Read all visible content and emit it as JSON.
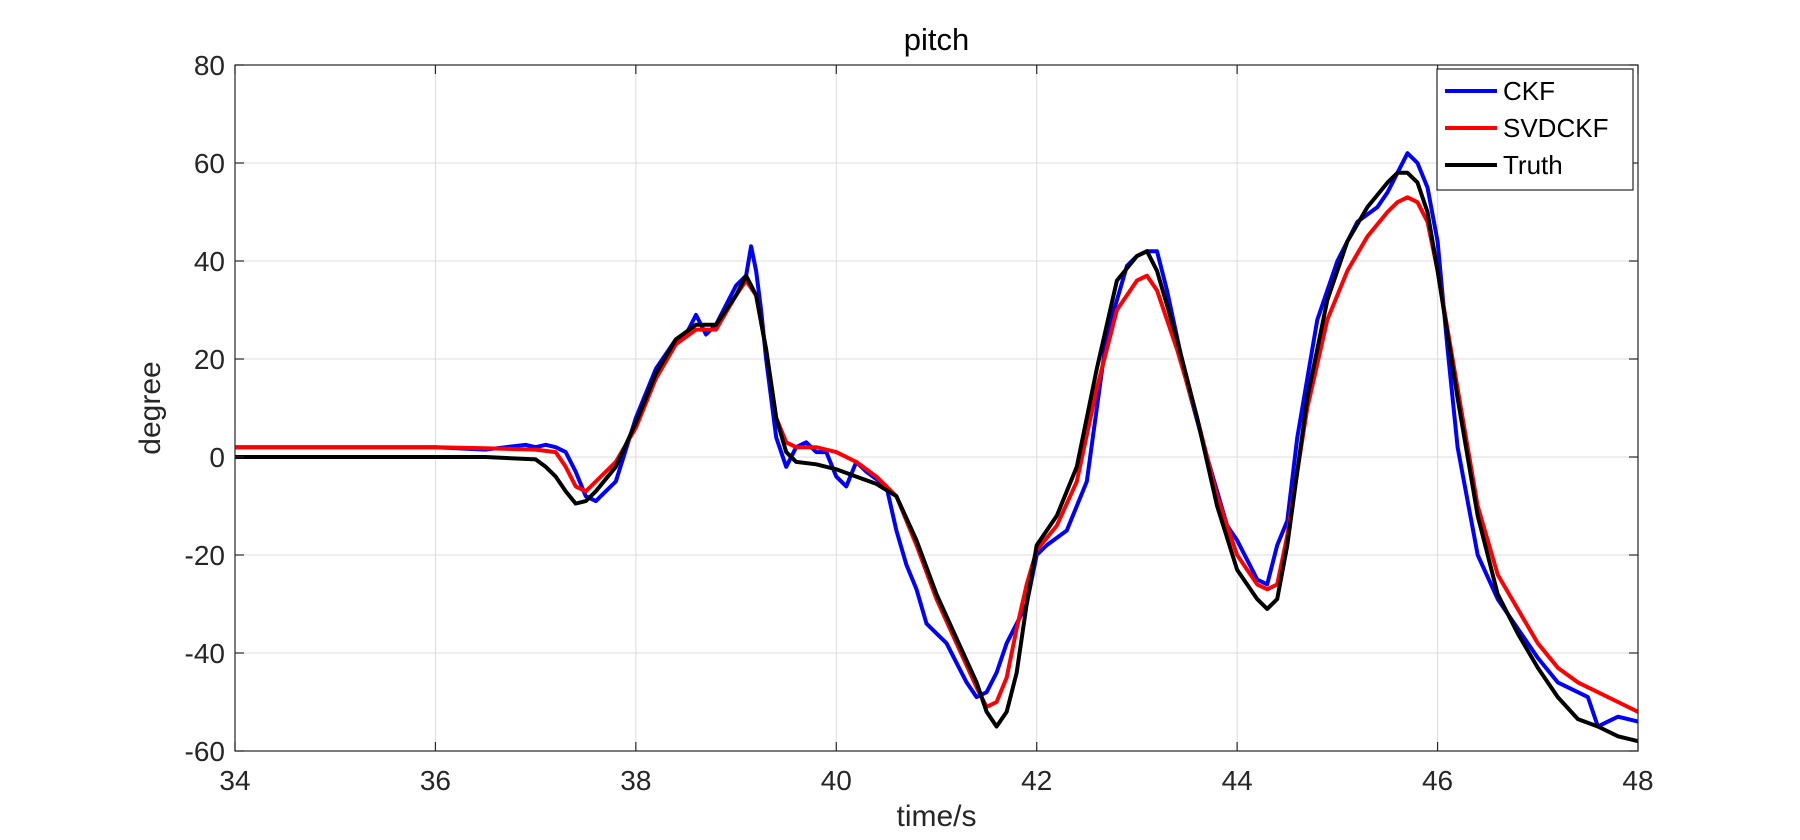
{
  "chart_data": {
    "type": "line",
    "title": "pitch",
    "xlabel": "time/s",
    "ylabel": "degree",
    "xlim": [
      34,
      48
    ],
    "ylim": [
      -60,
      80
    ],
    "xticks": [
      34,
      36,
      38,
      40,
      42,
      44,
      46,
      48
    ],
    "yticks": [
      -60,
      -40,
      -20,
      0,
      20,
      40,
      60,
      80
    ],
    "grid": true,
    "legend": "top-right",
    "series": [
      {
        "name": "CKF",
        "color": "#0000ff",
        "x": [
          34,
          35,
          36,
          36.5,
          36.7,
          36.9,
          37.0,
          37.1,
          37.2,
          37.3,
          37.4,
          37.5,
          37.6,
          37.8,
          38.0,
          38.2,
          38.4,
          38.5,
          38.6,
          38.7,
          38.8,
          38.9,
          39.0,
          39.1,
          39.15,
          39.2,
          39.25,
          39.3,
          39.4,
          39.5,
          39.6,
          39.7,
          39.8,
          39.9,
          40.0,
          40.1,
          40.2,
          40.3,
          40.5,
          40.6,
          40.7,
          40.8,
          40.9,
          41.0,
          41.1,
          41.2,
          41.3,
          41.4,
          41.5,
          41.6,
          41.7,
          41.8,
          41.9,
          42.0,
          42.1,
          42.3,
          42.5,
          42.7,
          42.9,
          43.0,
          43.1,
          43.2,
          43.3,
          43.5,
          43.7,
          43.9,
          44.0,
          44.1,
          44.2,
          44.3,
          44.4,
          44.5,
          44.6,
          44.8,
          45.0,
          45.2,
          45.4,
          45.5,
          45.6,
          45.7,
          45.8,
          45.9,
          46.0,
          46.1,
          46.2,
          46.4,
          46.6,
          46.8,
          47.0,
          47.2,
          47.4,
          47.5,
          47.6,
          47.7,
          47.8,
          48.0
        ],
        "y": [
          2,
          2,
          2,
          1.5,
          2,
          2.5,
          2,
          2.5,
          2,
          1,
          -3,
          -8,
          -9,
          -5,
          8,
          18,
          24,
          25,
          29,
          25,
          27,
          31,
          35,
          37,
          43,
          38,
          30,
          20,
          4,
          -2,
          2,
          3,
          1,
          1,
          -4,
          -6,
          -1,
          -3,
          -6,
          -15,
          -22,
          -27,
          -34,
          -36,
          -38,
          -42,
          -46,
          -49,
          -48,
          -44,
          -38,
          -34,
          -30,
          -20,
          -18,
          -15,
          -5,
          25,
          39,
          41,
          42,
          42,
          34,
          15,
          0,
          -14,
          -17,
          -21,
          -25,
          -26,
          -18,
          -13,
          4,
          28,
          40,
          48,
          51,
          54,
          58,
          62,
          60,
          55,
          44,
          22,
          2,
          -20,
          -29,
          -35,
          -41,
          -46,
          -48,
          -49,
          -55,
          -54,
          -53,
          -54
        ]
      },
      {
        "name": "SVDCKF",
        "color": "#ff0000",
        "x": [
          34,
          35,
          36,
          36.5,
          37.0,
          37.2,
          37.3,
          37.4,
          37.5,
          37.6,
          37.8,
          38.0,
          38.2,
          38.4,
          38.6,
          38.8,
          39.0,
          39.1,
          39.2,
          39.3,
          39.4,
          39.5,
          39.6,
          39.8,
          40.0,
          40.2,
          40.4,
          40.6,
          40.8,
          41.0,
          41.2,
          41.4,
          41.5,
          41.6,
          41.7,
          41.8,
          41.9,
          42.0,
          42.2,
          42.4,
          42.6,
          42.8,
          43.0,
          43.1,
          43.2,
          43.4,
          43.6,
          43.8,
          44.0,
          44.2,
          44.3,
          44.4,
          44.5,
          44.7,
          44.9,
          45.1,
          45.3,
          45.5,
          45.6,
          45.7,
          45.8,
          45.9,
          46.0,
          46.2,
          46.4,
          46.6,
          46.8,
          47.0,
          47.2,
          47.4,
          47.6,
          47.8,
          48.0
        ],
        "y": [
          2,
          2,
          2,
          1.8,
          1.5,
          1,
          -2,
          -6,
          -7,
          -5,
          -1,
          6,
          16,
          23,
          26,
          26,
          33,
          36,
          33,
          22,
          8,
          3,
          2,
          2,
          1,
          -1,
          -4,
          -8,
          -18,
          -29,
          -38,
          -47,
          -51,
          -50,
          -45,
          -35,
          -26,
          -19,
          -14,
          -5,
          14,
          30,
          36,
          37,
          34,
          22,
          8,
          -8,
          -20,
          -26,
          -27,
          -26,
          -16,
          10,
          28,
          38,
          45,
          50,
          52,
          53,
          52,
          48,
          38,
          14,
          -10,
          -24,
          -31,
          -38,
          -43,
          -46,
          -48,
          -50,
          -52
        ]
      },
      {
        "name": "Truth",
        "color": "#000000",
        "x": [
          34,
          35,
          36,
          36.5,
          37.0,
          37.1,
          37.2,
          37.3,
          37.4,
          37.5,
          37.6,
          37.8,
          38.0,
          38.2,
          38.4,
          38.6,
          38.8,
          39.0,
          39.1,
          39.2,
          39.3,
          39.4,
          39.5,
          39.6,
          39.8,
          40.0,
          40.2,
          40.4,
          40.6,
          40.8,
          41.0,
          41.2,
          41.4,
          41.5,
          41.6,
          41.7,
          41.8,
          41.9,
          42.0,
          42.2,
          42.4,
          42.6,
          42.8,
          43.0,
          43.1,
          43.2,
          43.4,
          43.6,
          43.8,
          44.0,
          44.2,
          44.3,
          44.4,
          44.5,
          44.7,
          44.9,
          45.1,
          45.3,
          45.5,
          45.6,
          45.7,
          45.8,
          45.9,
          46.0,
          46.2,
          46.4,
          46.6,
          46.8,
          47.0,
          47.2,
          47.4,
          47.6,
          47.8,
          48.0
        ],
        "y": [
          0,
          0,
          0,
          0,
          -0.5,
          -2,
          -4,
          -7,
          -9.5,
          -9,
          -7,
          -2,
          7,
          17,
          24,
          27,
          27,
          33,
          37,
          33,
          22,
          8,
          1,
          -1,
          -1.5,
          -2.5,
          -4,
          -5.5,
          -8,
          -17,
          -28,
          -37,
          -46,
          -52,
          -55,
          -52,
          -44,
          -30,
          -18,
          -12,
          -2,
          18,
          36,
          41,
          42,
          38,
          24,
          8,
          -10,
          -23,
          -29,
          -31,
          -29,
          -18,
          12,
          32,
          44,
          51,
          56,
          58,
          58,
          56,
          50,
          38,
          12,
          -12,
          -28,
          -36,
          -43,
          -49,
          -53.5,
          -55,
          -57,
          -58
        ]
      }
    ]
  }
}
